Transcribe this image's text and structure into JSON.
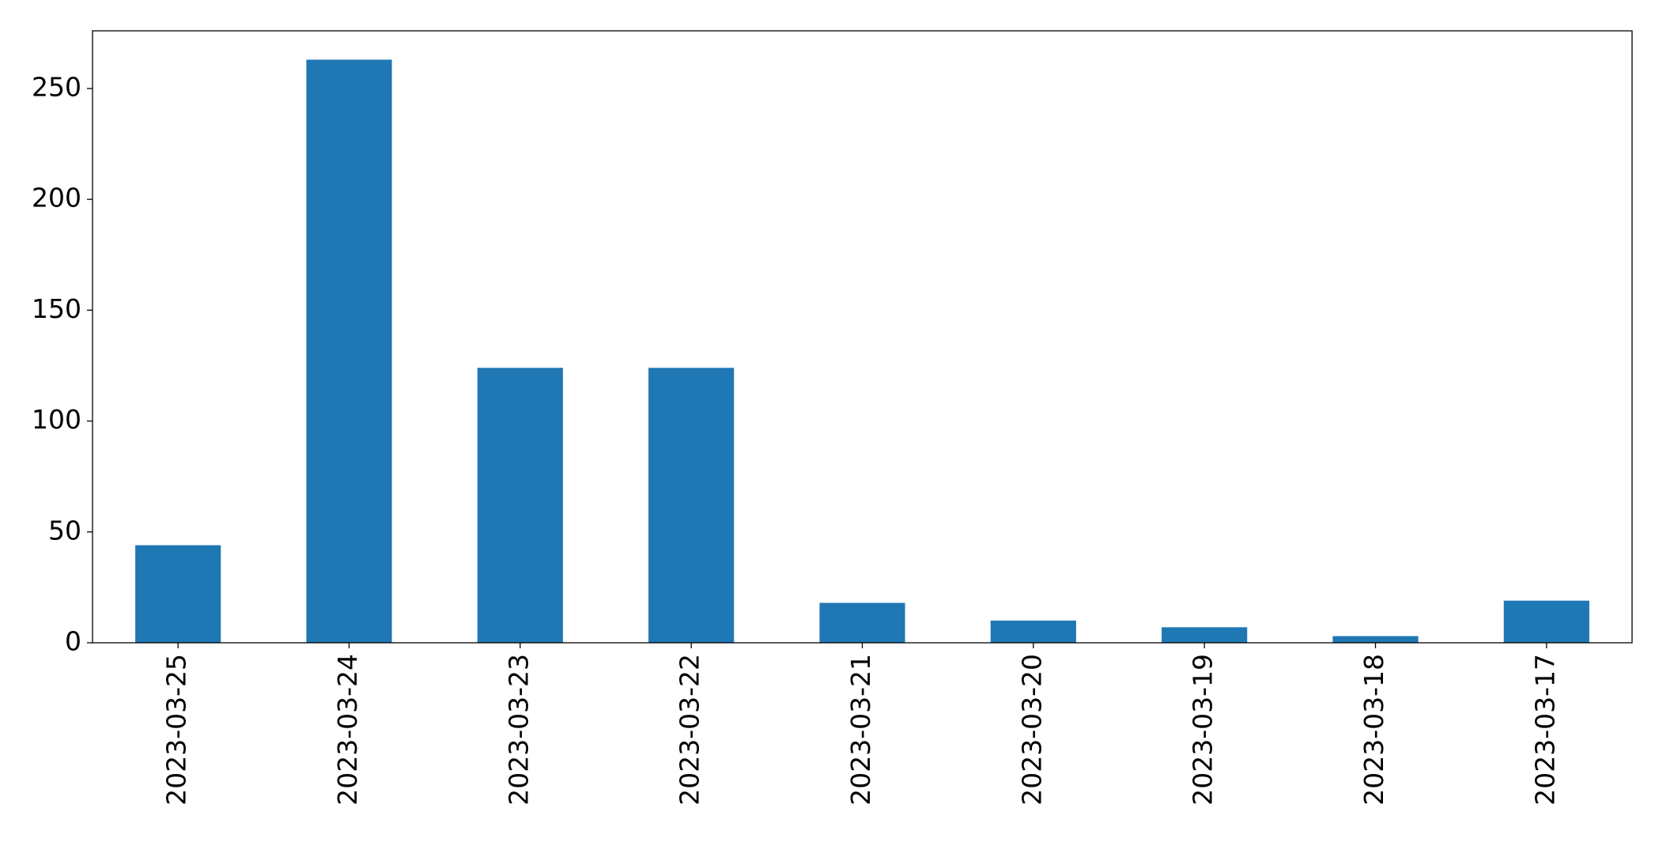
{
  "chart_data": {
    "type": "bar",
    "categories": [
      "2023-03-25",
      "2023-03-24",
      "2023-03-23",
      "2023-03-22",
      "2023-03-21",
      "2023-03-20",
      "2023-03-19",
      "2023-03-18",
      "2023-03-17"
    ],
    "values": [
      44,
      263,
      124,
      124,
      18,
      10,
      7,
      3,
      19
    ],
    "color": "#1f77b4",
    "ylim": [
      0,
      276
    ],
    "yticks": [
      0,
      50,
      100,
      150,
      200,
      250
    ],
    "grid": false
  }
}
